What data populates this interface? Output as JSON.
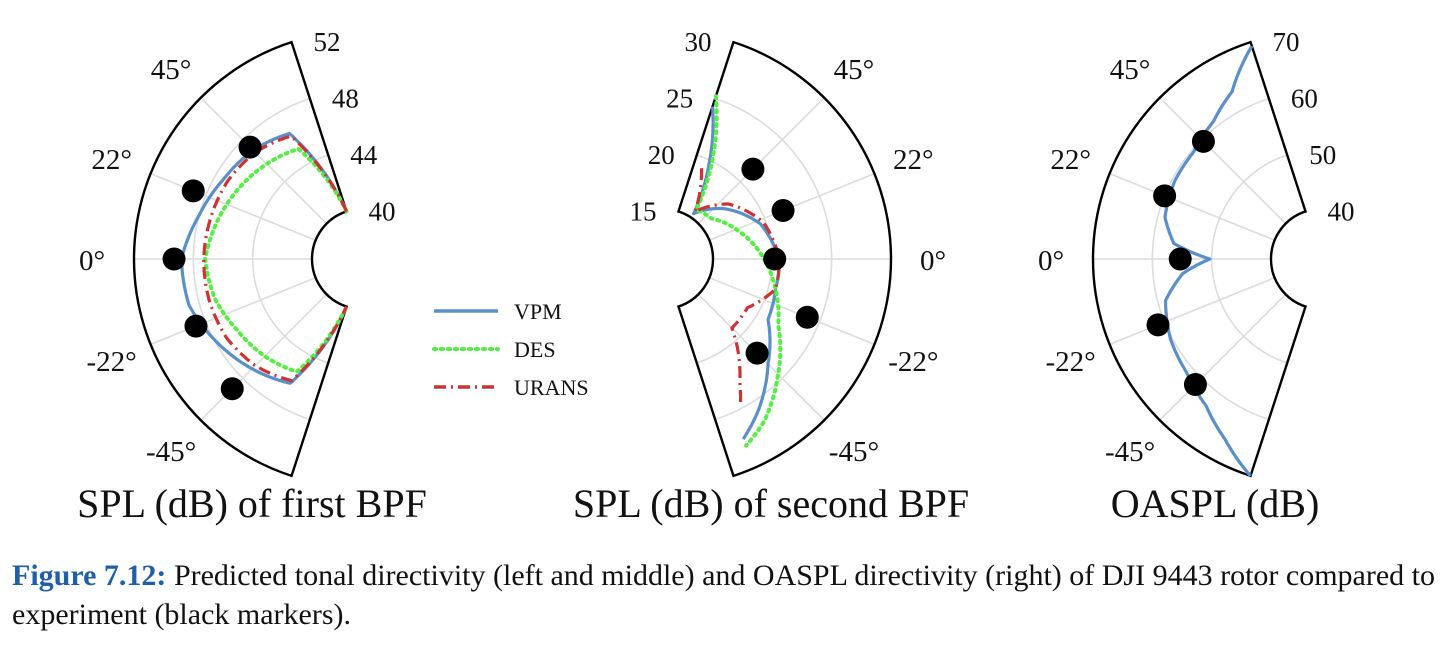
{
  "figure": {
    "caption_label": "Figure 7.12:",
    "caption_text": " Predicted tonal directivity (left and middle) and OASPL directivity (right) of DJI 9443 rotor compared to experiment (black markers)."
  },
  "legend": [
    {
      "name": "VPM",
      "color": "#5b8fc8",
      "style": "solid"
    },
    {
      "name": "DES",
      "color": "#55ee44",
      "style": "dotted"
    },
    {
      "name": "URANS",
      "color": "#cc3333",
      "style": "dashdot"
    }
  ],
  "chart_data": [
    {
      "type": "polar",
      "title": "SPL (dB) of first BPF",
      "theta_range_deg": [
        -72,
        72
      ],
      "radial_range": [
        40,
        52
      ],
      "radial_ticks": [
        40,
        44,
        48,
        52
      ],
      "angle_ticks": [
        45,
        22,
        0,
        -22,
        -45
      ],
      "angle_tick_labels": [
        "45°",
        "22°",
        "0°",
        "-22°",
        "-45°"
      ],
      "orientation": "left",
      "experiment_markers": [
        {
          "theta": 45,
          "r": 47.3
        },
        {
          "theta": 22,
          "r": 48.9
        },
        {
          "theta": 0,
          "r": 49.3
        },
        {
          "theta": -22,
          "r": 48.7
        },
        {
          "theta": -45,
          "r": 49.0
        }
      ],
      "series": [
        {
          "name": "VPM",
          "points": [
            [
              72,
              40
            ],
            [
              60,
              46.4
            ],
            [
              45,
              47.0
            ],
            [
              30,
              47.4
            ],
            [
              15,
              48.0
            ],
            [
              0,
              48.8
            ],
            [
              -15,
              48.7
            ],
            [
              -30,
              47.9
            ],
            [
              -45,
              47.1
            ],
            [
              -60,
              46.3
            ],
            [
              -72,
              40
            ]
          ]
        },
        {
          "name": "DES",
          "points": [
            [
              72,
              40
            ],
            [
              60,
              45.2
            ],
            [
              45,
              45.7
            ],
            [
              30,
              46.2
            ],
            [
              15,
              46.7
            ],
            [
              0,
              47.2
            ],
            [
              -15,
              46.9
            ],
            [
              -30,
              46.3
            ],
            [
              -45,
              45.9
            ],
            [
              -60,
              45.4
            ],
            [
              -72,
              40
            ]
          ]
        },
        {
          "name": "URANS",
          "points": [
            [
              72,
              40
            ],
            [
              60,
              46.2
            ],
            [
              45,
              46.8
            ],
            [
              30,
              47.1
            ],
            [
              15,
              47.2
            ],
            [
              0,
              47.3
            ],
            [
              -15,
              47.3
            ],
            [
              -30,
              47.2
            ],
            [
              -45,
              46.8
            ],
            [
              -60,
              46.1
            ],
            [
              -72,
              40
            ]
          ]
        }
      ]
    },
    {
      "type": "polar",
      "title": "SPL (dB) of second BPF",
      "theta_range_deg": [
        -72,
        72
      ],
      "radial_range": [
        15,
        30
      ],
      "radial_ticks": [
        15,
        20,
        25,
        30
      ],
      "angle_ticks": [
        45,
        22,
        0,
        -22,
        -45
      ],
      "angle_tick_labels": [
        "45°",
        "22°",
        "0°",
        "-22°",
        "-45°"
      ],
      "orientation": "right",
      "experiment_markers": [
        {
          "theta": 45,
          "r": 21.5
        },
        {
          "theta": 22,
          "r": 21.7
        },
        {
          "theta": 0,
          "r": 20.2
        },
        {
          "theta": -22,
          "r": 23.9
        },
        {
          "theta": -45,
          "r": 22.0
        }
      ],
      "series": [
        {
          "name": "VPM",
          "points": [
            [
              72,
              24.3
            ],
            [
              64,
              19.6
            ],
            [
              56,
              15.4
            ],
            [
              40,
              17.4
            ],
            [
              20,
              19.5
            ],
            [
              0,
              20.6
            ],
            [
              -15,
              20.6
            ],
            [
              -30,
              21.0
            ],
            [
              -45,
              23.3
            ],
            [
              -58,
              25.9
            ],
            [
              -66,
              27.4
            ]
          ]
        },
        {
          "name": "DES",
          "points": [
            [
              72,
              25.2
            ],
            [
              64,
              20.4
            ],
            [
              56,
              15.8
            ],
            [
              40,
              16.1
            ],
            [
              20,
              17.6
            ],
            [
              0,
              19.3
            ],
            [
              -15,
              20.6
            ],
            [
              -30,
              22.0
            ],
            [
              -45,
              24.5
            ],
            [
              -58,
              26.9
            ],
            [
              -66,
              28.0
            ]
          ]
        },
        {
          "name": "URANS",
          "points": [
            [
              67,
              19.1
            ],
            [
              63,
              17.8
            ],
            [
              56,
              15.6
            ],
            [
              40,
              18.0
            ],
            [
              20,
              19.8
            ],
            [
              0,
              20.6
            ],
            [
              -15,
              20.6
            ],
            [
              -30,
              19.0
            ],
            [
              -45,
              19.0
            ],
            [
              -58,
              23.0
            ],
            [
              -62,
              24.7
            ]
          ]
        }
      ]
    },
    {
      "type": "polar",
      "title": "OASPL (dB)",
      "theta_range_deg": [
        -72,
        72
      ],
      "radial_range": [
        40,
        70
      ],
      "radial_ticks": [
        40,
        50,
        60,
        70
      ],
      "angle_ticks": [
        45,
        22,
        0,
        -22,
        -45
      ],
      "angle_tick_labels": [
        "45°",
        "22°",
        "0°",
        "-22°",
        "-45°"
      ],
      "orientation": "left",
      "experiment_markers": [
        {
          "theta": 45,
          "r": 59.6
        },
        {
          "theta": 22,
          "r": 60.0
        },
        {
          "theta": 0,
          "r": 55.3
        },
        {
          "theta": -22,
          "r": 61.2
        },
        {
          "theta": -45,
          "r": 61.5
        }
      ],
      "series": [
        {
          "name": "VPM",
          "points": [
            [
              72,
              69.3
            ],
            [
              62,
              63.5
            ],
            [
              52,
              61.0
            ],
            [
              40,
              59.6
            ],
            [
              28,
              59.5
            ],
            [
              15,
              58.8
            ],
            [
              6,
              56.5
            ],
            [
              0,
              50.3
            ],
            [
              -6,
              55.0
            ],
            [
              -15,
              58.7
            ],
            [
              -28,
              60.3
            ],
            [
              -40,
              61.2
            ],
            [
              -52,
              63.0
            ],
            [
              -62,
              66.0
            ],
            [
              -72,
              70
            ]
          ]
        }
      ]
    }
  ]
}
